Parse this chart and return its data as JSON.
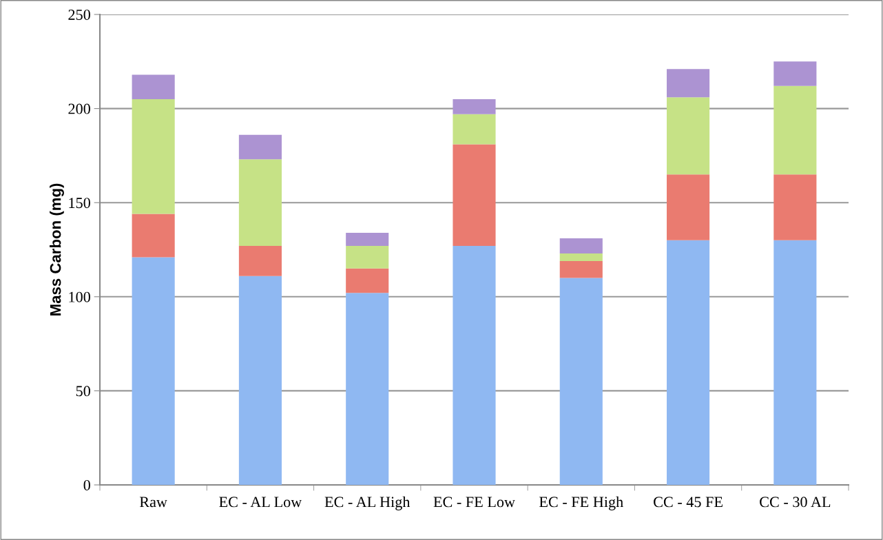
{
  "chart_data": {
    "type": "bar",
    "stacked": true,
    "ylabel": "Mass Carbon (mg)",
    "categories": [
      "Raw",
      "EC - AL Low",
      "EC - AL High",
      "EC - FE Low",
      "EC - FE High",
      "CC - 45 FE",
      "CC - 30 AL"
    ],
    "series": [
      {
        "color": "#8fb8f2",
        "values": [
          121,
          111,
          102,
          127,
          110,
          130,
          130
        ]
      },
      {
        "color": "#ea7b70",
        "values": [
          23,
          16,
          13,
          54,
          9,
          35,
          35
        ]
      },
      {
        "color": "#c6e286",
        "values": [
          61,
          46,
          12,
          16,
          4,
          41,
          47
        ]
      },
      {
        "color": "#ac93d2",
        "values": [
          13,
          13,
          7,
          8,
          8,
          15,
          13
        ]
      }
    ],
    "ylim": [
      0,
      250
    ],
    "yticks": [
      0,
      50,
      100,
      150,
      200,
      250
    ],
    "grid": "y"
  }
}
